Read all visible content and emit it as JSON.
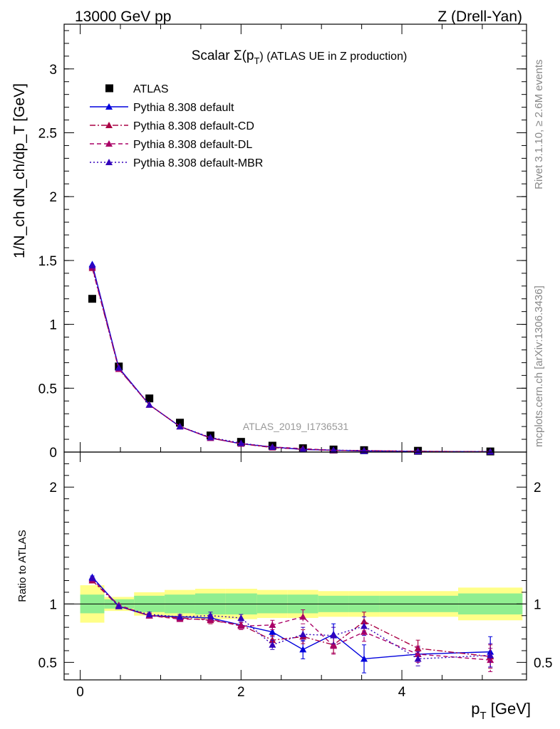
{
  "header": {
    "left": "13000 GeV pp",
    "right": "Z (Drell-Yan)"
  },
  "side_text": {
    "version": "Rivet 3.1.10, ≥ 2.6M events",
    "site": "mcplots.cern.ch [arXiv:1306.3436]"
  },
  "colors": {
    "data": "#000000",
    "default": "#0000dd",
    "cd": "#aa0044",
    "dl": "#aa0066",
    "mbr": "#3300bb",
    "band_green": "#90ee90",
    "band_yellow": "#ffff88"
  },
  "chart_data": [
    {
      "type": "line",
      "title": "Scalar Σ(p_T) (ATLAS UE in Z production)",
      "title_main": "Scalar Σ(p",
      "title_sub": "T",
      "title_tail": ") (ATLAS UE in Z production)",
      "watermark": "ATLAS_2019_I1736531",
      "ylabel": "1/N_ch dN_ch/dp_T [GeV]",
      "xlim": [
        -0.2,
        5.55
      ],
      "ylim": [
        0,
        3.35
      ],
      "yticks": [
        "0",
        "0.5",
        "1",
        "1.5",
        "2",
        "2.5",
        "3"
      ],
      "ytick_values": [
        0,
        0.5,
        1,
        1.5,
        2,
        2.5,
        3
      ],
      "legend_position": "top-left",
      "x": [
        0.15,
        0.48,
        0.86,
        1.24,
        1.62,
        2.0,
        2.39,
        2.77,
        3.15,
        3.53,
        4.2,
        5.1
      ],
      "series": [
        {
          "name": "ATLAS",
          "key": "data",
          "marker": "square",
          "line": "none",
          "values": [
            1.2,
            0.67,
            0.42,
            0.23,
            0.13,
            0.08,
            0.05,
            0.03,
            0.02,
            0.015,
            0.01,
            0.005
          ]
        },
        {
          "name": "Pythia 8.308 default",
          "key": "default",
          "marker": "triangle",
          "line": "solid",
          "values": [
            1.47,
            0.66,
            0.37,
            0.2,
            0.11,
            0.065,
            0.04,
            0.02,
            0.015,
            0.008,
            0.005,
            0.003
          ]
        },
        {
          "name": "Pythia 8.308 default-CD",
          "key": "cd",
          "marker": "triangle",
          "line": "dashdot",
          "values": [
            1.44,
            0.65,
            0.37,
            0.2,
            0.11,
            0.065,
            0.035,
            0.022,
            0.013,
            0.012,
            0.006,
            0.003
          ]
        },
        {
          "name": "Pythia 8.308 default-DL",
          "key": "dl",
          "marker": "triangle",
          "line": "dashed",
          "values": [
            1.45,
            0.65,
            0.37,
            0.2,
            0.11,
            0.066,
            0.04,
            0.027,
            0.013,
            0.011,
            0.006,
            0.003
          ]
        },
        {
          "name": "Pythia 8.308 default-MBR",
          "key": "mbr",
          "marker": "triangle",
          "line": "dotted",
          "values": [
            1.46,
            0.66,
            0.37,
            0.2,
            0.115,
            0.07,
            0.038,
            0.022,
            0.015,
            0.012,
            0.005,
            0.003
          ]
        }
      ]
    },
    {
      "type": "line",
      "ylabel": "Ratio to ATLAS",
      "xlabel": "p_T [GeV]",
      "xlabel_main": "p",
      "xlabel_sub": "T",
      "xlabel_tail": " [GeV]",
      "xlim": [
        -0.2,
        5.55
      ],
      "ylim": [
        0.35,
        2.3
      ],
      "xticks": [
        "0",
        "2",
        "4"
      ],
      "xtick_values": [
        0,
        2,
        4
      ],
      "yticks": [
        "0.5",
        "1",
        "2"
      ],
      "ytick_values": [
        0.5,
        1,
        2
      ],
      "bin_edges": [
        0,
        0.3,
        0.67,
        1.05,
        1.43,
        1.81,
        2.2,
        2.58,
        2.96,
        3.34,
        3.72,
        4.7,
        5.5
      ],
      "band_yellow": [
        0.16,
        0.06,
        0.1,
        0.12,
        0.13,
        0.13,
        0.12,
        0.12,
        0.11,
        0.11,
        0.11,
        0.14
      ],
      "band_green": [
        0.08,
        0.04,
        0.07,
        0.08,
        0.09,
        0.09,
        0.08,
        0.08,
        0.07,
        0.07,
        0.07,
        0.09
      ],
      "x": [
        0.15,
        0.48,
        0.86,
        1.24,
        1.62,
        2.0,
        2.39,
        2.77,
        3.15,
        3.53,
        4.2,
        5.1
      ],
      "series": [
        {
          "name": "Pythia 8.308 default",
          "key": "default",
          "line": "solid",
          "values": [
            1.23,
            0.98,
            0.9,
            0.89,
            0.88,
            0.82,
            0.76,
            0.61,
            0.74,
            0.53,
            0.57,
            0.59
          ],
          "errors": [
            0.01,
            0.01,
            0.02,
            0.02,
            0.03,
            0.03,
            0.04,
            0.08,
            0.09,
            0.12,
            0.06,
            0.13
          ]
        },
        {
          "name": "Pythia 8.308 default-CD",
          "key": "cd",
          "line": "dashdot",
          "values": [
            1.2,
            0.98,
            0.9,
            0.88,
            0.86,
            0.82,
            0.69,
            0.72,
            0.65,
            0.85,
            0.62,
            0.55
          ],
          "errors": [
            0.01,
            0.01,
            0.02,
            0.02,
            0.03,
            0.03,
            0.04,
            0.06,
            0.07,
            0.08,
            0.07,
            0.1
          ]
        },
        {
          "name": "Pythia 8.308 default-DL",
          "key": "dl",
          "line": "dashed",
          "values": [
            1.21,
            0.99,
            0.9,
            0.87,
            0.87,
            0.81,
            0.82,
            0.89,
            0.64,
            0.76,
            0.57,
            0.52
          ],
          "errors": [
            0.01,
            0.01,
            0.02,
            0.02,
            0.03,
            0.03,
            0.04,
            0.06,
            0.07,
            0.08,
            0.07,
            0.1
          ]
        },
        {
          "name": "Pythia 8.308 default-MBR",
          "key": "mbr",
          "line": "dotted",
          "values": [
            1.22,
            0.98,
            0.91,
            0.89,
            0.9,
            0.88,
            0.65,
            0.74,
            0.73,
            0.81,
            0.53,
            0.56
          ],
          "errors": [
            0.01,
            0.01,
            0.02,
            0.02,
            0.03,
            0.03,
            0.04,
            0.06,
            0.07,
            0.08,
            0.06,
            0.1
          ]
        }
      ]
    }
  ]
}
